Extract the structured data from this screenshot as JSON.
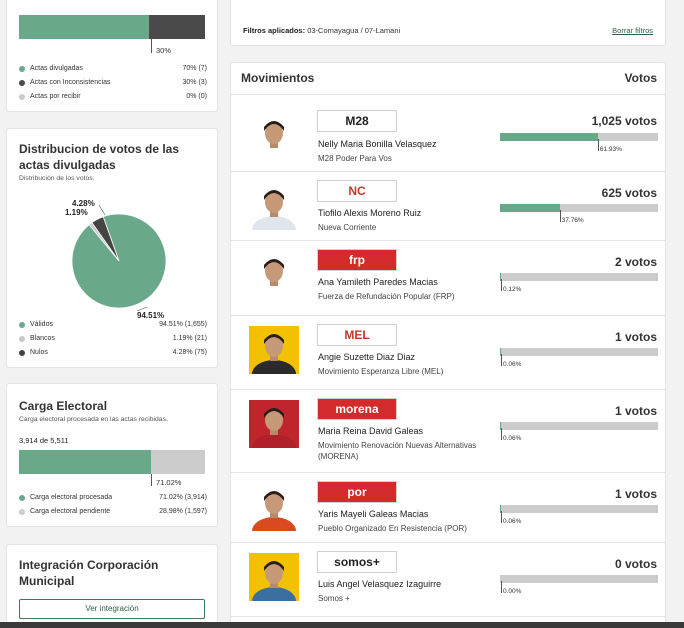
{
  "status_card": {
    "bar_value_label": "30%",
    "progress": {
      "divulgadas_pct": 70,
      "inconsistencias_pct": 30,
      "por_recibir_pct": 0
    },
    "legend": [
      {
        "label": "Actas divulgadas",
        "value": "70% (7)",
        "color": "#6aa88a"
      },
      {
        "label": "Actas con Inconsistencias",
        "value": "30% (3)",
        "color": "#4a4a4a"
      },
      {
        "label": "Actas por recibir",
        "value": "0% (0)",
        "color": "#cccccc"
      }
    ]
  },
  "distribution_card": {
    "title": "Distribucion de votos de las actas divulgadas",
    "subtitle": "Distribución de los votos.",
    "chart_labels": {
      "validos": "94.51%",
      "blancos": "1.19%",
      "nulos": "4.28%"
    },
    "chart_data": {
      "type": "pie",
      "categories": [
        "Válidos",
        "Blancos",
        "Nulos"
      ],
      "values": [
        94.51,
        1.19,
        4.28
      ],
      "colors": [
        "#6aa88a",
        "#c8c8c8",
        "#444444"
      ]
    },
    "legend": [
      {
        "label": "Válidos",
        "value": "94.51% (1,655)",
        "color": "#6aa88a"
      },
      {
        "label": "Blancos",
        "value": "1.19% (21)",
        "color": "#c8c8c8"
      },
      {
        "label": "Nulos",
        "value": "4.28% (75)",
        "color": "#444444"
      }
    ]
  },
  "carga_card": {
    "title": "Carga Electoral",
    "subtitle": "Carga electoral procesada en las actas recibidas.",
    "count": "3,914 de 5,511",
    "bar_value_label": "71.02%",
    "progress_pct": 71.02,
    "legend": [
      {
        "label": "Carga electoral procesada",
        "value": "71.02% (3,914)",
        "color": "#6aa88a"
      },
      {
        "label": "Carga electoral pendiente",
        "value": "28.98% (1,597)",
        "color": "#cccccc"
      }
    ]
  },
  "integracion_card": {
    "title": "Integración Corporación Municipal",
    "button_label": "Ver integración"
  },
  "filters": {
    "label": "Filtros aplicados:",
    "value": "03-Comayagua / 07-Lamani",
    "clear_label": "Borrar filtros"
  },
  "movimientos": {
    "title": "Movimientos",
    "votes_header": "Votos",
    "rows": [
      {
        "name": "Nelly Maria Bonilla Velasquez",
        "party": "M28 Poder Para Vos",
        "logo_text": "M28",
        "logo_bg": "#ffffff",
        "logo_fg": "#222222",
        "votes": "1,025 votos",
        "pct_label": "61.93%",
        "pct": 61.93,
        "shirt": "#ffffff",
        "bg": "#ffffff"
      },
      {
        "name": "Tiofilo Alexis Moreno Ruiz",
        "party": "Nueva Corriente",
        "logo_text": "NC",
        "logo_bg": "#ffffff",
        "logo_fg": "#c0392b",
        "votes": "625 votos",
        "pct_label": "37.76%",
        "pct": 37.76,
        "shirt": "#dfe6ee",
        "bg": "#ffffff"
      },
      {
        "name": "Ana Yamileth Paredes Macias",
        "party": "Fuerza de Refundación Popular (FRP)",
        "logo_text": "frp",
        "logo_bg": "#d32b2b",
        "logo_fg": "#ffffff",
        "votes": "2 votos",
        "pct_label": "0.12%",
        "pct": 0.12,
        "shirt": "#ffffff",
        "bg": "#ffffff"
      },
      {
        "name": "Angie Suzette Diaz Diaz",
        "party": "Movimiento Esperanza Libre (MEL)",
        "logo_text": "MEL",
        "logo_bg": "#ffffff",
        "logo_fg": "#c0392b",
        "votes": "1 votos",
        "pct_label": "0.06%",
        "pct": 0.06,
        "shirt": "#2b2b2b",
        "bg": "#f2c200"
      },
      {
        "name": "Maria Reina David Galeas",
        "party": "Movimiento Renovación Nuevas Alternativas (MORENA)",
        "logo_text": "morena",
        "logo_bg": "#d32b2b",
        "logo_fg": "#ffffff",
        "votes": "1 votos",
        "pct_label": "0.06%",
        "pct": 0.06,
        "shirt": "#b0202a",
        "bg": "#c0252d"
      },
      {
        "name": "Yaris Mayeli Galeas Macias",
        "party": "Pueblo Organizado En Resistencia (POR)",
        "logo_text": "por",
        "logo_bg": "#d32b2b",
        "logo_fg": "#ffffff",
        "votes": "1 votos",
        "pct_label": "0.06%",
        "pct": 0.06,
        "shirt": "#d94a1e",
        "bg": "#ffffff"
      },
      {
        "name": "Luis Angel Velasquez Izaguirre",
        "party": "Somos +",
        "logo_text": "somos+",
        "logo_bg": "#ffffff",
        "logo_fg": "#222222",
        "votes": "0 votos",
        "pct_label": "0.00%",
        "pct": 0,
        "shirt": "#3b6fa0",
        "bg": "#f2c200"
      }
    ]
  }
}
